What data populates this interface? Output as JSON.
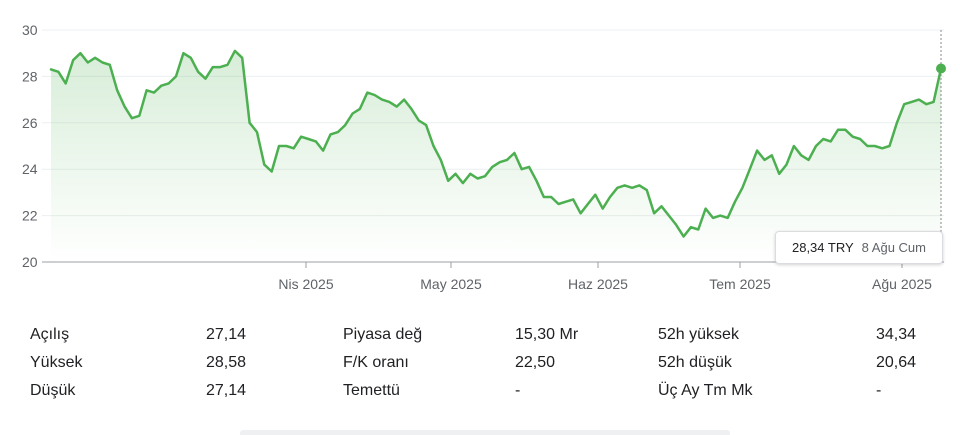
{
  "chart_data": {
    "type": "area",
    "xlabel": "",
    "ylabel": "",
    "ylim": [
      20,
      30
    ],
    "yticks": [
      "20",
      "22",
      "24",
      "26",
      "28",
      "30"
    ],
    "xticks": [
      "Nis 2025",
      "May 2025",
      "Haz 2025",
      "Tem 2025",
      "Ağu 2025"
    ],
    "grid": true,
    "series": [
      {
        "values": [
          28.3,
          28.2,
          27.7,
          28.7,
          29.0,
          28.6,
          28.8,
          28.6,
          28.5,
          27.4,
          26.7,
          26.2,
          26.3,
          27.4,
          27.3,
          27.6,
          27.7,
          28.0,
          29.0,
          28.8,
          28.2,
          27.9,
          28.4,
          28.4,
          28.5,
          29.1,
          28.8,
          26.0,
          25.6,
          24.2,
          23.9,
          25.0,
          25.0,
          24.9,
          25.4,
          25.3,
          25.2,
          24.8,
          25.5,
          25.6,
          25.9,
          26.4,
          26.6,
          27.3,
          27.2,
          27.0,
          26.9,
          26.7,
          27.0,
          26.6,
          26.1,
          25.9,
          25.0,
          24.4,
          23.5,
          23.8,
          23.4,
          23.8,
          23.6,
          23.7,
          24.1,
          24.3,
          24.4,
          24.7,
          24.0,
          24.1,
          23.5,
          22.8,
          22.8,
          22.5,
          22.6,
          22.7,
          22.1,
          22.5,
          22.9,
          22.3,
          22.8,
          23.2,
          23.3,
          23.2,
          23.3,
          23.1,
          22.1,
          22.4,
          22.0,
          21.6,
          21.1,
          21.5,
          21.4,
          22.3,
          21.9,
          22.0,
          21.9,
          22.6,
          23.2,
          24.0,
          24.8,
          24.4,
          24.6,
          23.8,
          24.2,
          25.0,
          24.6,
          24.4,
          25.0,
          25.3,
          25.2,
          25.7,
          25.7,
          25.4,
          25.3,
          25.0,
          25.0,
          24.9,
          25.0,
          26.0,
          26.8,
          26.9,
          27.0,
          26.8,
          26.9,
          28.34
        ]
      }
    ],
    "last_point": {
      "value": "28,34 TRY",
      "date": "8 Ağu Cum"
    },
    "line_color": "#4caf50",
    "fill_color": "#e6f4ea"
  },
  "stats": {
    "col1": [
      {
        "label": "Açılış",
        "value": "27,14"
      },
      {
        "label": "Yüksek",
        "value": "28,58"
      },
      {
        "label": "Düşük",
        "value": "27,14"
      }
    ],
    "col2": [
      {
        "label": "Piyasa değ",
        "value": "15,30 Mr"
      },
      {
        "label": "F/K oranı",
        "value": "22,50"
      },
      {
        "label": "Temettü",
        "value": "-"
      }
    ],
    "col3": [
      {
        "label": "52h yüksek",
        "value": "34,34"
      },
      {
        "label": "52h düşük",
        "value": "20,64"
      },
      {
        "label": "Üç Ay Tm Mk",
        "value": "-"
      }
    ]
  }
}
